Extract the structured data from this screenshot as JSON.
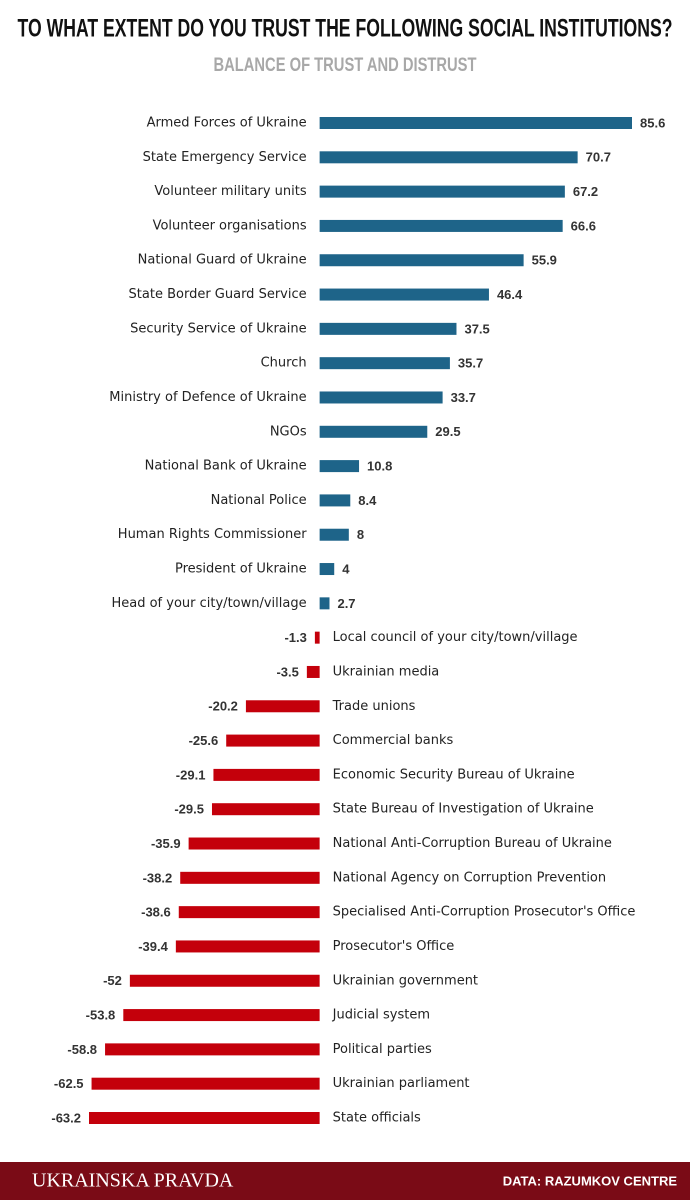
{
  "chart_data": {
    "type": "diverging-bar",
    "title": "TO WHAT EXTENT DO YOU TRUST THE FOLLOWING SOCIAL INSTITUTIONS?",
    "subtitle": "BALANCE OF TRUST AND DISTRUST",
    "categories": [
      "Armed Forces of Ukraine",
      "State Emergency Service",
      "Volunteer military units",
      "Volunteer organisations",
      "National Guard of Ukraine",
      "State Border Guard Service",
      "Security Service of Ukraine",
      "Church",
      "Ministry of Defence of Ukraine",
      "NGOs",
      "National Bank of Ukraine",
      "National Police",
      "Human Rights Commissioner",
      "President of Ukraine",
      "Head of your city/town/village",
      "Local council of your city/town/village",
      "Ukrainian media",
      "Trade unions",
      "Commercial banks",
      "Economic Security Bureau of Ukraine",
      "State Bureau of Investigation of Ukraine",
      "National Anti-Corruption Bureau of Ukraine",
      "National Agency on Corruption Prevention",
      "Specialised Anti-Corruption Prosecutor's Office",
      "Prosecutor's Office",
      "Ukrainian government",
      "Judicial system",
      "Political parties",
      "Ukrainian parliament",
      "State officials"
    ],
    "values": [
      85.6,
      70.7,
      67.2,
      66.6,
      55.9,
      46.4,
      37.5,
      35.7,
      33.7,
      29.5,
      10.8,
      8.4,
      8,
      4,
      2.7,
      -1.3,
      -3.5,
      -20.2,
      -25.6,
      -29.1,
      -29.5,
      -35.9,
      -38.2,
      -38.6,
      -39.4,
      -52,
      -53.8,
      -58.8,
      -62.5,
      -63.2
    ],
    "positive_color": "#1e6489",
    "negative_color": "#c4000b"
  },
  "footer": {
    "brand": "UKRAINSKA PRAVDA",
    "source": "DATA: RAZUMKOV CENTRE"
  }
}
